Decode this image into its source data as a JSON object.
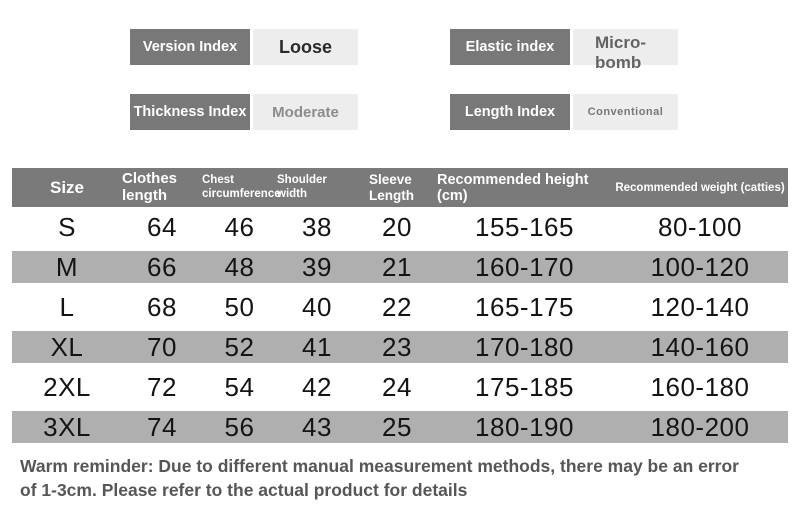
{
  "indices": {
    "version": {
      "label": "Version Index",
      "value": "Loose"
    },
    "thickness": {
      "label": "Thickness Index",
      "value": "Moderate"
    },
    "elastic": {
      "label": "Elastic index",
      "value": "Micro-bomb"
    },
    "length": {
      "label": "Length Index",
      "value": "Conventional"
    }
  },
  "size_table": {
    "columns": [
      "Size",
      "Clothes length",
      "Chest circumference",
      "Shoulder width",
      "Sleeve Length",
      "Recommended height (cm)",
      "Recommended weight (catties)"
    ],
    "rows": [
      [
        "S",
        "64",
        "46",
        "38",
        "20",
        "155-165",
        "80-100"
      ],
      [
        "M",
        "66",
        "48",
        "39",
        "21",
        "160-170",
        "100-120"
      ],
      [
        "L",
        "68",
        "50",
        "40",
        "22",
        "165-175",
        "120-140"
      ],
      [
        "XL",
        "70",
        "52",
        "41",
        "23",
        "170-180",
        "140-160"
      ],
      [
        "2XL",
        "72",
        "54",
        "42",
        "24",
        "175-185",
        "160-180"
      ],
      [
        "3XL",
        "74",
        "56",
        "43",
        "25",
        "180-190",
        "180-200"
      ]
    ]
  },
  "reminder": {
    "line1": "Warm reminder: Due to different manual measurement methods, there may be an error",
    "line2": "of 1-3cm. Please refer to the actual product for details"
  },
  "colors": {
    "label_box_bg": "#787878",
    "value_box_bg": "#ededed",
    "table_header_bg": "#7a7a7a",
    "row_alt_bg": "#afafaf",
    "reminder_text": "#565656"
  }
}
